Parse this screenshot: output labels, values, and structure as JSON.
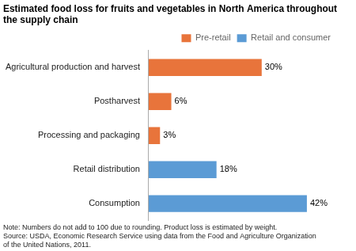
{
  "chart_data": {
    "type": "bar",
    "orientation": "horizontal",
    "title": "Estimated food loss for fruits and vegetables in North America throughout the supply chain",
    "categories": [
      "Agricultural production and harvest",
      "Postharvest",
      "Processing and packaging",
      "Retail distribution",
      "Consumption"
    ],
    "series": [
      {
        "name": "Pre-retail",
        "color": "#E8743B",
        "values": [
          30,
          6,
          3,
          null,
          null
        ],
        "value_labels": [
          "30%",
          "6%",
          "3%",
          null,
          null
        ]
      },
      {
        "name": "Retail and consumer",
        "color": "#5B9BD5",
        "values": [
          null,
          null,
          null,
          18,
          42
        ],
        "value_labels": [
          null,
          null,
          null,
          "18%",
          "42%"
        ]
      }
    ],
    "xlim": [
      0,
      50
    ],
    "data_labels": true,
    "tick_labels": "y",
    "grid": false,
    "legend": "upper right",
    "annotations": [
      "Note: Numbers do not add to 100 due to rounding. Product loss is estimated by weight.",
      "Source: USDA, Economic Research Service using data from the Food and Agriculture Organization",
      "of the United Nations, 2011."
    ]
  }
}
